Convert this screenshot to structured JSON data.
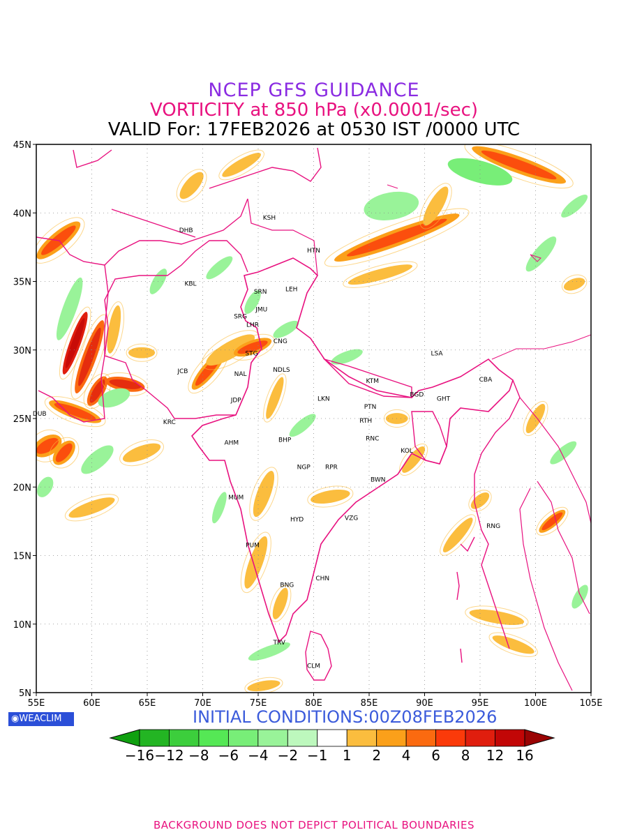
{
  "header": {
    "title": "NCEP GFS GUIDANCE",
    "subtitle": "VORTICITY at 850 hPa (x0.0001/sec)",
    "valid": "VALID For: 17FEB2026 at 0530 IST /0000 UTC"
  },
  "axes": {
    "lon_ticks": [
      "55E",
      "60E",
      "65E",
      "70E",
      "75E",
      "80E",
      "85E",
      "90E",
      "95E",
      "100E",
      "105E"
    ],
    "lat_ticks": [
      "45N",
      "40N",
      "35N",
      "30N",
      "25N",
      "20N",
      "15N",
      "10N",
      "5N"
    ],
    "lon_range": [
      55,
      105
    ],
    "lat_range": [
      5,
      45
    ],
    "grid": "dotted"
  },
  "stations": [
    {
      "code": "KSH",
      "lon": 76.0,
      "lat": 39.5
    },
    {
      "code": "DHB",
      "lon": 68.5,
      "lat": 38.6
    },
    {
      "code": "HTN",
      "lon": 80.0,
      "lat": 37.1
    },
    {
      "code": "KBL",
      "lon": 68.9,
      "lat": 34.7
    },
    {
      "code": "SRN",
      "lon": 75.2,
      "lat": 34.1
    },
    {
      "code": "LEH",
      "lon": 78.0,
      "lat": 34.3
    },
    {
      "code": "JMU",
      "lon": 75.3,
      "lat": 32.8
    },
    {
      "code": "SRG",
      "lon": 73.4,
      "lat": 32.3
    },
    {
      "code": "LHR",
      "lon": 74.5,
      "lat": 31.7
    },
    {
      "code": "CNG",
      "lon": 77.0,
      "lat": 30.5
    },
    {
      "code": "STG",
      "lon": 74.4,
      "lat": 29.6
    },
    {
      "code": "LSA",
      "lon": 91.1,
      "lat": 29.6
    },
    {
      "code": "JCB",
      "lon": 68.2,
      "lat": 28.3
    },
    {
      "code": "NAL",
      "lon": 73.4,
      "lat": 28.1
    },
    {
      "code": "NDLS",
      "lon": 77.1,
      "lat": 28.4
    },
    {
      "code": "KTM",
      "lon": 85.3,
      "lat": 27.6
    },
    {
      "code": "CBA",
      "lon": 95.5,
      "lat": 27.7
    },
    {
      "code": "BGD",
      "lon": 89.3,
      "lat": 26.6
    },
    {
      "code": "GHT",
      "lon": 91.7,
      "lat": 26.3
    },
    {
      "code": "JDP",
      "lon": 73.0,
      "lat": 26.2
    },
    {
      "code": "LKN",
      "lon": 80.9,
      "lat": 26.3
    },
    {
      "code": "PTN",
      "lon": 85.1,
      "lat": 25.7
    },
    {
      "code": "DUB",
      "lon": 55.3,
      "lat": 25.2
    },
    {
      "code": "KRC",
      "lon": 67.0,
      "lat": 24.6
    },
    {
      "code": "RTH",
      "lon": 84.7,
      "lat": 24.7
    },
    {
      "code": "AHM",
      "lon": 72.6,
      "lat": 23.1
    },
    {
      "code": "BHP",
      "lon": 77.4,
      "lat": 23.3
    },
    {
      "code": "RNC",
      "lon": 85.3,
      "lat": 23.4
    },
    {
      "code": "KOL",
      "lon": 88.4,
      "lat": 22.5
    },
    {
      "code": "NGP",
      "lon": 79.1,
      "lat": 21.3
    },
    {
      "code": "RPR",
      "lon": 81.6,
      "lat": 21.3
    },
    {
      "code": "BWN",
      "lon": 85.8,
      "lat": 20.4
    },
    {
      "code": "MUM",
      "lon": 73.0,
      "lat": 19.1
    },
    {
      "code": "HYD",
      "lon": 78.5,
      "lat": 17.5
    },
    {
      "code": "VZG",
      "lon": 83.4,
      "lat": 17.6
    },
    {
      "code": "RNG",
      "lon": 96.2,
      "lat": 17.0
    },
    {
      "code": "PUM",
      "lon": 74.5,
      "lat": 15.6
    },
    {
      "code": "CHN",
      "lon": 80.8,
      "lat": 13.2
    },
    {
      "code": "BNG",
      "lon": 77.6,
      "lat": 12.7
    },
    {
      "code": "TRV",
      "lon": 76.9,
      "lat": 8.5
    },
    {
      "code": "CLM",
      "lon": 80.0,
      "lat": 6.8
    }
  ],
  "vort_blobs": [
    {
      "lon": 57.0,
      "lat": 38.0,
      "rx": 2.5,
      "ry": 0.6,
      "rot": -40,
      "v": 4
    },
    {
      "lon": 59.8,
      "lat": 29.5,
      "rx": 3.5,
      "ry": 0.5,
      "rot": -70,
      "v": 6
    },
    {
      "lon": 58.5,
      "lat": 30.5,
      "rx": 3.0,
      "ry": 0.4,
      "rot": -70,
      "v": 12
    },
    {
      "lon": 60.5,
      "lat": 27.0,
      "rx": 1.5,
      "ry": 0.5,
      "rot": -60,
      "v": 6
    },
    {
      "lon": 56.0,
      "lat": 23.0,
      "rx": 1.4,
      "ry": 0.7,
      "rot": -30,
      "v": 4
    },
    {
      "lon": 57.5,
      "lat": 22.5,
      "rx": 1.3,
      "ry": 0.6,
      "rot": -50,
      "v": 4
    },
    {
      "lon": 60.0,
      "lat": 18.5,
      "rx": 2.2,
      "ry": 0.45,
      "rot": -20,
      "v": 2
    },
    {
      "lon": 58.5,
      "lat": 25.5,
      "rx": 2.5,
      "ry": 0.5,
      "rot": 20,
      "v": 4
    },
    {
      "lon": 63.0,
      "lat": 27.5,
      "rx": 1.8,
      "ry": 0.5,
      "rot": 10,
      "v": 6
    },
    {
      "lon": 62.0,
      "lat": 31.5,
      "rx": 2.2,
      "ry": 0.4,
      "rot": -80,
      "v": 2
    },
    {
      "lon": 64.5,
      "lat": 29.8,
      "rx": 1.2,
      "ry": 0.4,
      "rot": 0,
      "v": 2
    },
    {
      "lon": 64.5,
      "lat": 22.5,
      "rx": 1.8,
      "ry": 0.5,
      "rot": -20,
      "v": 2
    },
    {
      "lon": 70.5,
      "lat": 28.5,
      "rx": 2.2,
      "ry": 0.5,
      "rot": -50,
      "v": 4
    },
    {
      "lon": 72.5,
      "lat": 30.0,
      "rx": 2.5,
      "ry": 0.6,
      "rot": -30,
      "v": 2
    },
    {
      "lon": 74.5,
      "lat": 30.2,
      "rx": 1.8,
      "ry": 0.5,
      "rot": -20,
      "v": 4
    },
    {
      "lon": 76.5,
      "lat": 26.5,
      "rx": 2.0,
      "ry": 0.35,
      "rot": -70,
      "v": 2
    },
    {
      "lon": 75.5,
      "lat": 19.5,
      "rx": 2.2,
      "ry": 0.5,
      "rot": -70,
      "v": 2
    },
    {
      "lon": 74.8,
      "lat": 14.5,
      "rx": 2.5,
      "ry": 0.5,
      "rot": -70,
      "v": 2
    },
    {
      "lon": 77.0,
      "lat": 11.5,
      "rx": 1.5,
      "ry": 0.4,
      "rot": -70,
      "v": 2
    },
    {
      "lon": 81.5,
      "lat": 19.3,
      "rx": 1.8,
      "ry": 0.45,
      "rot": -10,
      "v": 2
    },
    {
      "lon": 87.5,
      "lat": 25.0,
      "rx": 1.0,
      "ry": 0.4,
      "rot": 0,
      "v": 2
    },
    {
      "lon": 89.0,
      "lat": 22.0,
      "rx": 1.5,
      "ry": 0.4,
      "rot": -50,
      "v": 2
    },
    {
      "lon": 93.0,
      "lat": 16.5,
      "rx": 2.0,
      "ry": 0.4,
      "rot": -50,
      "v": 2
    },
    {
      "lon": 95.0,
      "lat": 19.0,
      "rx": 1.0,
      "ry": 0.4,
      "rot": -40,
      "v": 2
    },
    {
      "lon": 87.5,
      "lat": 38.2,
      "rx": 6.0,
      "ry": 0.6,
      "rot": -20,
      "v": 4
    },
    {
      "lon": 91.0,
      "lat": 40.5,
      "rx": 2.0,
      "ry": 0.5,
      "rot": -60,
      "v": 2
    },
    {
      "lon": 98.5,
      "lat": 43.5,
      "rx": 4.5,
      "ry": 0.6,
      "rot": 20,
      "v": 4
    },
    {
      "lon": 86.0,
      "lat": 35.5,
      "rx": 3.0,
      "ry": 0.4,
      "rot": -15,
      "v": 2
    },
    {
      "lon": 73.5,
      "lat": 43.5,
      "rx": 2.0,
      "ry": 0.4,
      "rot": -30,
      "v": 2
    },
    {
      "lon": 69.0,
      "lat": 42.0,
      "rx": 1.5,
      "ry": 0.5,
      "rot": -50,
      "v": 2
    },
    {
      "lon": 96.5,
      "lat": 10.5,
      "rx": 2.5,
      "ry": 0.45,
      "rot": 10,
      "v": 2
    },
    {
      "lon": 98.0,
      "lat": 8.5,
      "rx": 2.0,
      "ry": 0.4,
      "rot": 20,
      "v": 2
    },
    {
      "lon": 75.5,
      "lat": 5.5,
      "rx": 1.5,
      "ry": 0.35,
      "rot": -10,
      "v": 2
    },
    {
      "lon": 101.5,
      "lat": 17.5,
      "rx": 1.5,
      "ry": 0.4,
      "rot": -40,
      "v": 4
    },
    {
      "lon": 103.5,
      "lat": 34.8,
      "rx": 1.0,
      "ry": 0.4,
      "rot": -20,
      "v": 2
    },
    {
      "lon": 100.0,
      "lat": 25.0,
      "rx": 1.5,
      "ry": 0.4,
      "rot": -60,
      "v": 2
    },
    {
      "lon": 66.0,
      "lat": 35.0,
      "rx": 1.3,
      "ry": 0.4,
      "rot": -60,
      "v": -2
    },
    {
      "lon": 58.0,
      "lat": 33.0,
      "rx": 3.0,
      "ry": 0.5,
      "rot": -70,
      "v": -2
    },
    {
      "lon": 62.0,
      "lat": 26.5,
      "rx": 1.5,
      "ry": 0.6,
      "rot": -20,
      "v": -2
    },
    {
      "lon": 60.5,
      "lat": 22.0,
      "rx": 1.8,
      "ry": 0.6,
      "rot": -40,
      "v": -2
    },
    {
      "lon": 55.8,
      "lat": 20.0,
      "rx": 1.0,
      "ry": 0.5,
      "rot": -60,
      "v": -2
    },
    {
      "lon": 71.5,
      "lat": 36.0,
      "rx": 1.5,
      "ry": 0.4,
      "rot": -40,
      "v": -2
    },
    {
      "lon": 74.5,
      "lat": 33.5,
      "rx": 1.2,
      "ry": 0.4,
      "rot": -60,
      "v": -2
    },
    {
      "lon": 77.5,
      "lat": 31.5,
      "rx": 1.3,
      "ry": 0.4,
      "rot": -30,
      "v": -2
    },
    {
      "lon": 79.0,
      "lat": 24.5,
      "rx": 1.5,
      "ry": 0.4,
      "rot": -40,
      "v": -2
    },
    {
      "lon": 71.5,
      "lat": 18.5,
      "rx": 1.5,
      "ry": 0.35,
      "rot": -70,
      "v": -2
    },
    {
      "lon": 76.0,
      "lat": 8.0,
      "rx": 2.0,
      "ry": 0.4,
      "rot": -20,
      "v": -2
    },
    {
      "lon": 87.0,
      "lat": 40.5,
      "rx": 2.5,
      "ry": 1.0,
      "rot": -10,
      "v": -2
    },
    {
      "lon": 95.0,
      "lat": 43.0,
      "rx": 3.0,
      "ry": 0.8,
      "rot": 15,
      "v": -4
    },
    {
      "lon": 100.5,
      "lat": 37.0,
      "rx": 2.0,
      "ry": 0.5,
      "rot": -50,
      "v": -2
    },
    {
      "lon": 103.5,
      "lat": 40.5,
      "rx": 1.5,
      "ry": 0.4,
      "rot": -40,
      "v": -2
    },
    {
      "lon": 83.0,
      "lat": 29.5,
      "rx": 1.5,
      "ry": 0.4,
      "rot": -20,
      "v": -2
    },
    {
      "lon": 102.5,
      "lat": 22.5,
      "rx": 1.5,
      "ry": 0.4,
      "rot": -40,
      "v": -2
    },
    {
      "lon": 104.0,
      "lat": 12.0,
      "rx": 1.2,
      "ry": 0.4,
      "rot": -60,
      "v": -2
    }
  ],
  "colorbar": {
    "labels": [
      "-16",
      "-12",
      "-8",
      "-6",
      "-4",
      "-2",
      "-1",
      "1",
      "2",
      "4",
      "6",
      "8",
      "12",
      "16"
    ],
    "colors": [
      "#10a010",
      "#23b523",
      "#3cce3c",
      "#55e855",
      "#78ee78",
      "#99f399",
      "#bdf8bd",
      "#ffffff",
      "#fbbd3e",
      "#fba01a",
      "#fb6a10",
      "#fb3a0a",
      "#e01e0e",
      "#c20606",
      "#9a0404"
    ]
  },
  "badge": "◉WEACLIM",
  "initial_conditions": "INITIAL CONDITIONS:00Z08FEB2026",
  "footer": "BACKGROUND DOES NOT DEPICT POLITICAL BOUNDARIES"
}
